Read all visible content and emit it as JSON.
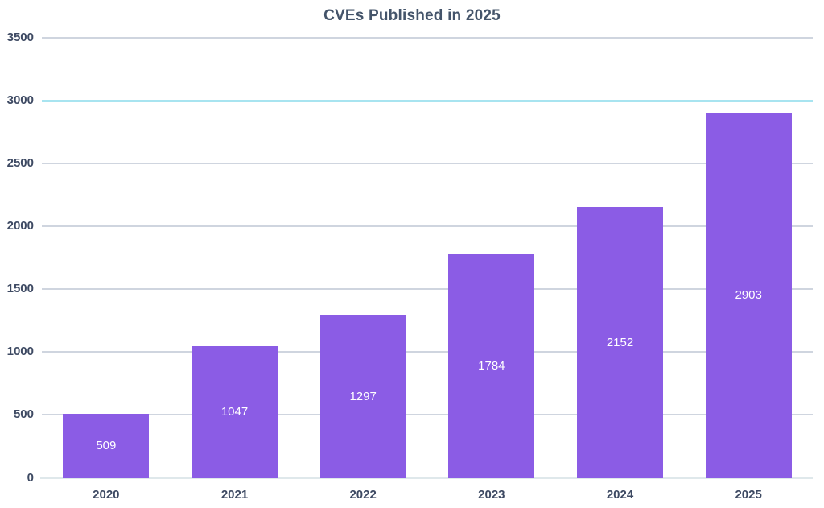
{
  "chart_data": {
    "type": "bar",
    "title": "CVEs Published in 2025",
    "categories": [
      "2020",
      "2021",
      "2022",
      "2023",
      "2024",
      "2025"
    ],
    "values": [
      509,
      1047,
      1297,
      1784,
      2152,
      2903
    ],
    "xlabel": "",
    "ylabel": "",
    "ylim": [
      0,
      3500
    ],
    "yticks": [
      0,
      500,
      1000,
      1500,
      2000,
      2500,
      3000,
      3500
    ],
    "grid": true,
    "highlighted_gridline_value": 3000,
    "legend_position": "none",
    "data_label_position": "inside-center",
    "colors": {
      "bar": "#8B5CE5",
      "gridline": "#CFD5DF",
      "highlight_gridline": "#A8E4F0",
      "axis_line": "#DFE8EB",
      "title_text": "#44546A",
      "tick_text": "#3E4A63",
      "data_label_text": "#FFFFFF",
      "background": "#FFFFFF"
    }
  }
}
